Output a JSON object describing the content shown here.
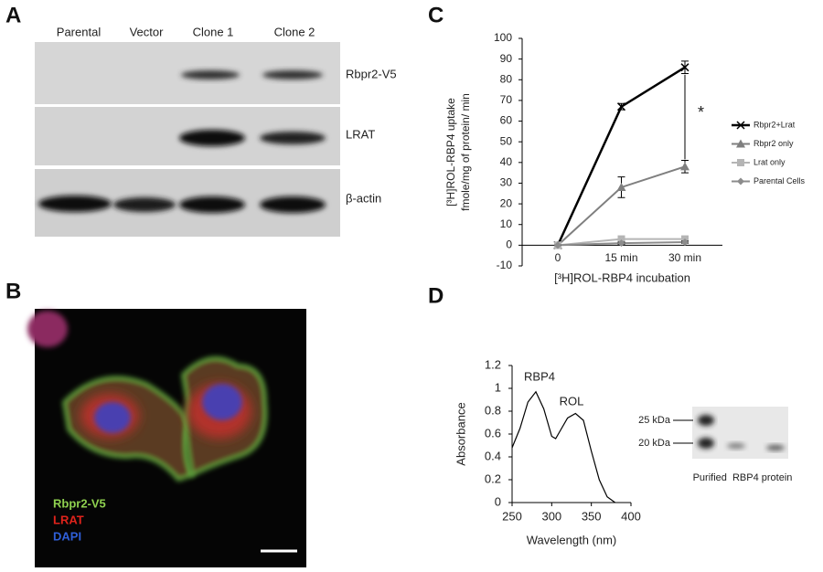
{
  "panels": {
    "labels": [
      "A",
      "B",
      "C",
      "D"
    ]
  },
  "panel_a": {
    "lanes": [
      "Parental",
      "Vector",
      "Clone 1",
      "Clone 2"
    ],
    "rows": [
      "Rbpr2-V5",
      "LRAT",
      "β-actin"
    ]
  },
  "panel_b": {
    "legend": [
      {
        "text": "Rbpr2-V5",
        "color": "#8fd14f"
      },
      {
        "text": "LRAT",
        "color": "#e0231b"
      },
      {
        "text": "DAPI",
        "color": "#2f5fd8"
      }
    ]
  },
  "panel_d": {
    "gel_markers": [
      "25 kDa",
      "20 kDa"
    ],
    "gel_caption": "Purified  RBP4 protein"
  },
  "chart_data": [
    {
      "type": "line",
      "categories": [
        "0",
        "15 min",
        "30 min"
      ],
      "ylabel": [
        "[³H]ROL-RBP4 uptake",
        "fmole/mg of protein/ min"
      ],
      "xlabel": "[³H]ROL-RBP4 incubation",
      "ylim": [
        -10,
        100
      ],
      "yticks": [
        -10,
        0,
        10,
        20,
        30,
        40,
        50,
        60,
        70,
        80,
        90,
        100
      ],
      "annotation": "*",
      "legend": "right",
      "series": [
        {
          "name": "Rbpr2+Lrat",
          "color": "#000000",
          "marker": "x",
          "values": [
            0,
            67,
            86
          ],
          "errors": [
            0,
            1.5,
            3
          ]
        },
        {
          "name": "Rbpr2 only",
          "color": "#7f7f7f",
          "marker": "triangle",
          "values": [
            0,
            28,
            38
          ],
          "errors": [
            0,
            5,
            3
          ]
        },
        {
          "name": "Lrat only",
          "color": "#b5b5b5",
          "marker": "square",
          "values": [
            0,
            3,
            3
          ],
          "errors": [
            0,
            1,
            1
          ]
        },
        {
          "name": "Parental Cells",
          "color": "#8c8c8c",
          "marker": "diamond",
          "values": [
            0,
            1,
            1.5
          ],
          "errors": [
            0,
            0.5,
            0.5
          ]
        }
      ]
    },
    {
      "type": "line",
      "xlabel": "Wavelength (nm)",
      "ylabel": [
        "Absorbance"
      ],
      "x": [
        250,
        260,
        270,
        280,
        290,
        300,
        305,
        310,
        320,
        330,
        340,
        350,
        360,
        370,
        380
      ],
      "xlim": [
        250,
        400
      ],
      "xticks": [
        250,
        300,
        350,
        400
      ],
      "ylim": [
        0,
        1.2
      ],
      "yticks": [
        0,
        0.2,
        0.4,
        0.6,
        0.8,
        1,
        1.2
      ],
      "annotations": [
        "RBP4",
        "ROL"
      ],
      "series": [
        {
          "color": "#000000",
          "values": [
            0.48,
            0.65,
            0.88,
            0.97,
            0.82,
            0.58,
            0.56,
            0.62,
            0.74,
            0.78,
            0.72,
            0.45,
            0.2,
            0.05,
            0
          ]
        }
      ]
    }
  ]
}
